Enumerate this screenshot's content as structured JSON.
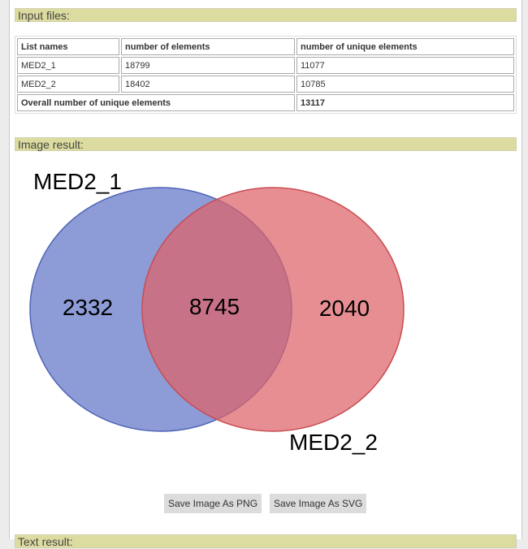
{
  "sections": {
    "input_files": "Input files:",
    "image_result": "Image result:",
    "text_result": "Text result:"
  },
  "table": {
    "headers": [
      "List names",
      "number of elements",
      "number of unique elements"
    ],
    "rows": [
      {
        "name": "MED2_1",
        "elements": "18799",
        "unique": "11077"
      },
      {
        "name": "MED2_2",
        "elements": "18402",
        "unique": "10785"
      }
    ],
    "overall_label": "Overall number of unique elements",
    "overall_value": "13117"
  },
  "chart_data": {
    "type": "venn",
    "sets": [
      {
        "name": "MED2_1",
        "only": 2332,
        "color": "#6d80cc"
      },
      {
        "name": "MED2_2",
        "only": 2040,
        "color": "#de6368"
      }
    ],
    "intersection": 8745,
    "labels": {
      "set1": "MED2_1",
      "set2": "MED2_2",
      "left_only": "2332",
      "both": "8745",
      "right_only": "2040"
    }
  },
  "buttons": {
    "save_png": "Save Image As PNG",
    "save_svg": "Save Image As SVG"
  }
}
